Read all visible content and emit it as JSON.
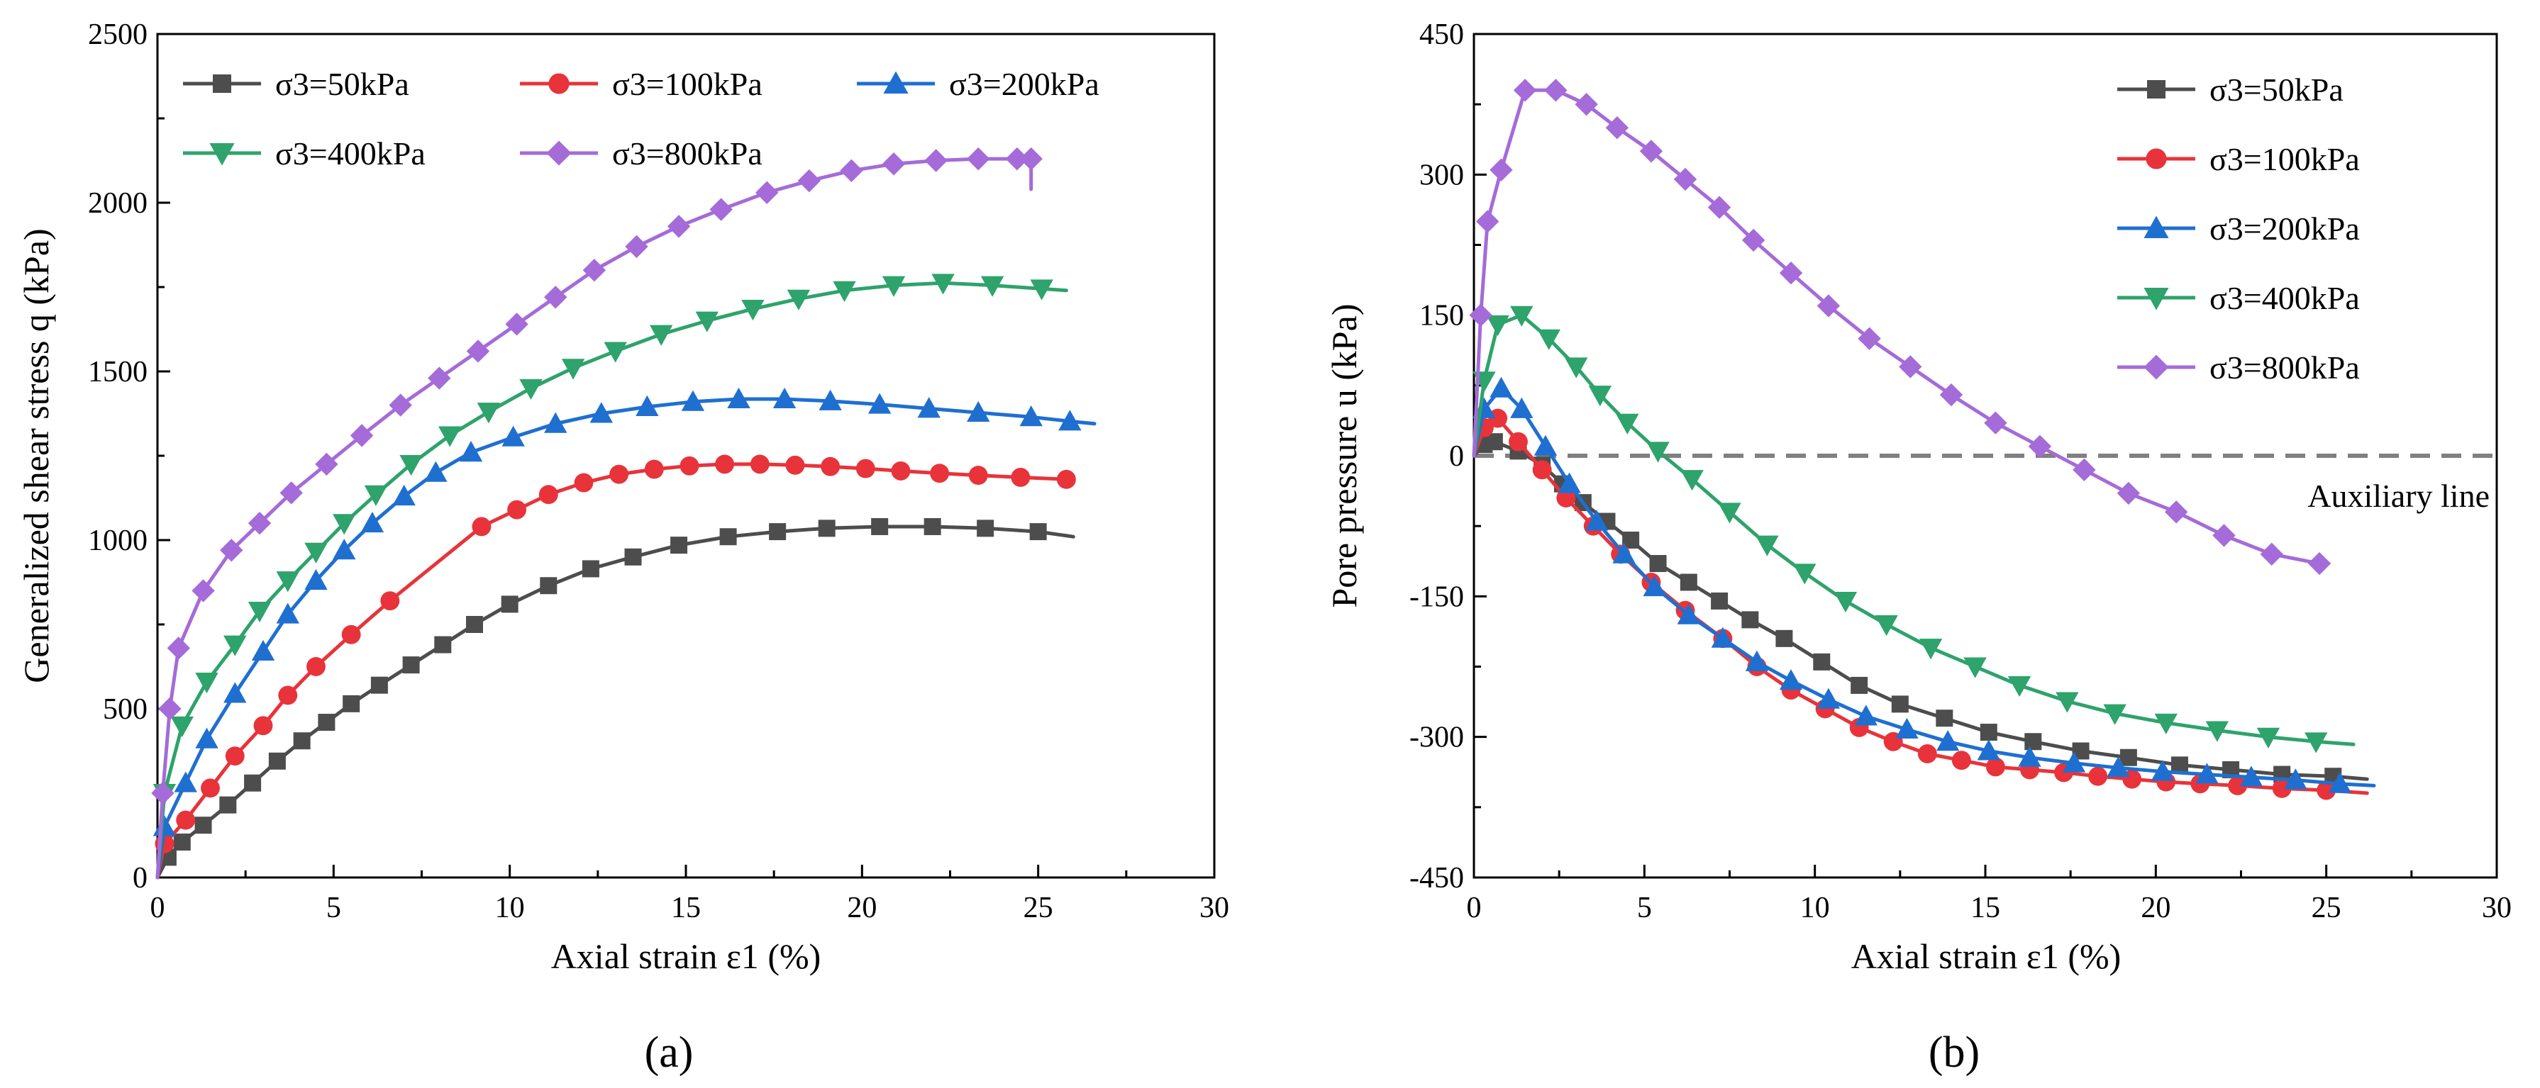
{
  "chart_data": [
    {
      "type": "line",
      "panel_label": "(a)",
      "xlabel": "Axial strain ε1 (%)",
      "ylabel": "Generalized shear stress q (kPa)",
      "xlim": [
        0,
        30
      ],
      "ylim": [
        0,
        2500
      ],
      "xticks": [
        "0",
        "5",
        "10",
        "15",
        "20",
        "25",
        "30"
      ],
      "yticks": [
        "0",
        "500",
        "1000",
        "1500",
        "2000",
        "2500"
      ],
      "legend_position": "top-left",
      "legend_columns": 3,
      "series": [
        {
          "name": "σ3=50kPa",
          "color": "#4d4d4d",
          "marker": "square",
          "x": [
            0,
            0.3,
            0.7,
            1.3,
            2,
            2.7,
            3.4,
            4.1,
            4.8,
            5.5,
            6.3,
            7.2,
            8.1,
            9,
            10,
            11.1,
            12.3,
            13.5,
            14.8,
            16.2,
            17.6,
            19,
            20.5,
            22,
            23.5,
            25,
            26
          ],
          "y": [
            0,
            60,
            105,
            155,
            215,
            280,
            345,
            405,
            460,
            515,
            570,
            630,
            690,
            750,
            810,
            865,
            915,
            950,
            985,
            1010,
            1025,
            1035,
            1040,
            1040,
            1035,
            1025,
            1010
          ]
        },
        {
          "name": "σ3=100kPa",
          "color": "#e8333a",
          "marker": "circle",
          "x": [
            0,
            0.2,
            0.8,
            1.5,
            2.2,
            3,
            3.7,
            4.5,
            5.5,
            6.6,
            9.2,
            10.2,
            11.1,
            12.1,
            13.1,
            14.1,
            15.1,
            16.1,
            17.1,
            18.1,
            19.1,
            20.1,
            21.1,
            22.2,
            23.3,
            24.5,
            25.8,
            26
          ],
          "y": [
            0,
            100,
            170,
            265,
            360,
            450,
            540,
            625,
            720,
            820,
            1040,
            1090,
            1135,
            1170,
            1195,
            1210,
            1220,
            1225,
            1225,
            1222,
            1218,
            1212,
            1205,
            1198,
            1192,
            1186,
            1180,
            1178
          ]
        },
        {
          "name": "σ3=200kPa",
          "color": "#1f6fd1",
          "marker": "triangle-up",
          "x": [
            0,
            0.2,
            0.8,
            1.4,
            2.2,
            3,
            3.7,
            4.5,
            5.3,
            6.1,
            7,
            7.9,
            8.9,
            10.1,
            11.3,
            12.6,
            13.9,
            15.2,
            16.5,
            17.8,
            19.1,
            20.5,
            21.9,
            23.3,
            24.8,
            25.9,
            26.6
          ],
          "y": [
            0,
            150,
            280,
            410,
            545,
            670,
            780,
            880,
            970,
            1050,
            1130,
            1200,
            1260,
            1305,
            1345,
            1375,
            1395,
            1410,
            1418,
            1418,
            1412,
            1402,
            1390,
            1378,
            1365,
            1352,
            1345
          ]
        },
        {
          "name": "σ3=400kPa",
          "color": "#2ea36b",
          "marker": "triangle-down",
          "x": [
            0,
            0.2,
            0.7,
            1.4,
            2.2,
            2.9,
            3.7,
            4.5,
            5.3,
            6.2,
            7.2,
            8.3,
            9.4,
            10.6,
            11.8,
            13,
            14.3,
            15.6,
            16.9,
            18.2,
            19.5,
            20.9,
            22.3,
            23.7,
            25.1,
            25.8
          ],
          "y": [
            0,
            250,
            450,
            580,
            690,
            790,
            880,
            965,
            1050,
            1135,
            1225,
            1310,
            1380,
            1450,
            1510,
            1560,
            1610,
            1650,
            1685,
            1715,
            1740,
            1755,
            1762,
            1755,
            1745,
            1740
          ]
        },
        {
          "name": "σ3=800kPa",
          "color": "#a56bd8",
          "marker": "diamond",
          "x": [
            0,
            0.15,
            0.35,
            0.6,
            1.3,
            2.1,
            2.9,
            3.8,
            4.8,
            5.8,
            6.9,
            8,
            9.1,
            10.2,
            11.3,
            12.4,
            13.6,
            14.8,
            16,
            17.3,
            18.5,
            19.7,
            20.9,
            22.1,
            23.3,
            24.4,
            24.8,
            24.8
          ],
          "y": [
            0,
            250,
            500,
            680,
            850,
            970,
            1050,
            1140,
            1225,
            1310,
            1400,
            1480,
            1560,
            1640,
            1720,
            1800,
            1870,
            1930,
            1980,
            2030,
            2065,
            2095,
            2115,
            2125,
            2130,
            2130,
            2130,
            2040
          ]
        }
      ]
    },
    {
      "type": "line",
      "panel_label": "(b)",
      "xlabel": "Axial strain ε1 (%)",
      "ylabel": "Pore pressure u (kPa)",
      "xlim": [
        0,
        30
      ],
      "ylim": [
        -450,
        450
      ],
      "xticks": [
        "0",
        "5",
        "10",
        "15",
        "20",
        "25",
        "30"
      ],
      "yticks": [
        "-450",
        "-300",
        "-150",
        "0",
        "150",
        "300",
        "450"
      ],
      "legend_position": "top-right",
      "annotation": {
        "text": "Auxiliary line",
        "y": 0
      },
      "series": [
        {
          "name": "σ3=50kPa",
          "color": "#4d4d4d",
          "marker": "square",
          "x": [
            0,
            0.3,
            0.6,
            1.3,
            2,
            2.6,
            3.2,
            3.9,
            4.6,
            5.4,
            6.3,
            7.2,
            8.1,
            9.1,
            10.2,
            11.3,
            12.5,
            13.8,
            15.1,
            16.4,
            17.8,
            19.2,
            20.7,
            22.2,
            23.7,
            25.2,
            26.2
          ],
          "y": [
            0,
            12,
            15,
            5,
            -10,
            -30,
            -50,
            -70,
            -90,
            -115,
            -135,
            -155,
            -175,
            -195,
            -220,
            -245,
            -265,
            -280,
            -295,
            -305,
            -315,
            -322,
            -330,
            -335,
            -340,
            -342,
            -345
          ]
        },
        {
          "name": "σ3=100kPa",
          "color": "#e8333a",
          "marker": "circle",
          "x": [
            0,
            0.3,
            0.7,
            1.3,
            2,
            2.7,
            3.5,
            4.3,
            5.2,
            6.2,
            7.3,
            8.3,
            9.3,
            10.3,
            11.3,
            12.3,
            13.3,
            14.3,
            15.3,
            16.3,
            17.3,
            18.3,
            19.3,
            20.3,
            21.3,
            22.4,
            23.7,
            25,
            26.2
          ],
          "y": [
            0,
            30,
            40,
            15,
            -15,
            -45,
            -75,
            -105,
            -135,
            -165,
            -195,
            -225,
            -250,
            -270,
            -290,
            -305,
            -318,
            -325,
            -332,
            -335,
            -338,
            -342,
            -345,
            -348,
            -350,
            -352,
            -355,
            -357,
            -360
          ]
        },
        {
          "name": "σ3=200kPa",
          "color": "#1f6fd1",
          "marker": "triangle-up",
          "x": [
            0,
            0.3,
            0.8,
            1.4,
            2.1,
            2.8,
            3.6,
            4.4,
            5.3,
            6.3,
            7.3,
            8.3,
            9.3,
            10.4,
            11.5,
            12.7,
            13.9,
            15.1,
            16.3,
            17.6,
            18.9,
            20.2,
            21.5,
            22.8,
            24.1,
            25.4,
            26.4
          ],
          "y": [
            0,
            50,
            72,
            50,
            10,
            -30,
            -70,
            -105,
            -140,
            -170,
            -195,
            -220,
            -240,
            -260,
            -278,
            -292,
            -305,
            -315,
            -322,
            -328,
            -333,
            -337,
            -340,
            -343,
            -346,
            -350,
            -352
          ]
        },
        {
          "name": "σ3=400kPa",
          "color": "#2ea36b",
          "marker": "triangle-down",
          "x": [
            0,
            0.3,
            0.7,
            1.4,
            2.2,
            3,
            3.7,
            4.5,
            5.4,
            6.4,
            7.5,
            8.6,
            9.7,
            10.9,
            12.1,
            13.4,
            14.7,
            16,
            17.4,
            18.8,
            20.3,
            21.8,
            23.3,
            24.7,
            25.8
          ],
          "y": [
            0,
            80,
            140,
            150,
            125,
            95,
            65,
            35,
            5,
            -25,
            -60,
            -95,
            -125,
            -155,
            -180,
            -205,
            -225,
            -245,
            -262,
            -275,
            -285,
            -293,
            -300,
            -305,
            -308
          ]
        },
        {
          "name": "σ3=800kPa",
          "color": "#a56bd8",
          "marker": "diamond",
          "x": [
            0,
            0.2,
            0.4,
            0.8,
            1.5,
            2.4,
            3.3,
            4.2,
            5.2,
            6.2,
            7.2,
            8.2,
            9.3,
            10.4,
            11.6,
            12.8,
            14,
            15.3,
            16.6,
            17.9,
            19.2,
            20.6,
            22,
            23.4,
            24.8,
            24.8
          ],
          "y": [
            0,
            150,
            250,
            305,
            390,
            390,
            375,
            350,
            325,
            295,
            265,
            230,
            195,
            160,
            125,
            95,
            65,
            35,
            10,
            -15,
            -40,
            -60,
            -85,
            -105,
            -115,
            -120
          ]
        }
      ]
    }
  ]
}
